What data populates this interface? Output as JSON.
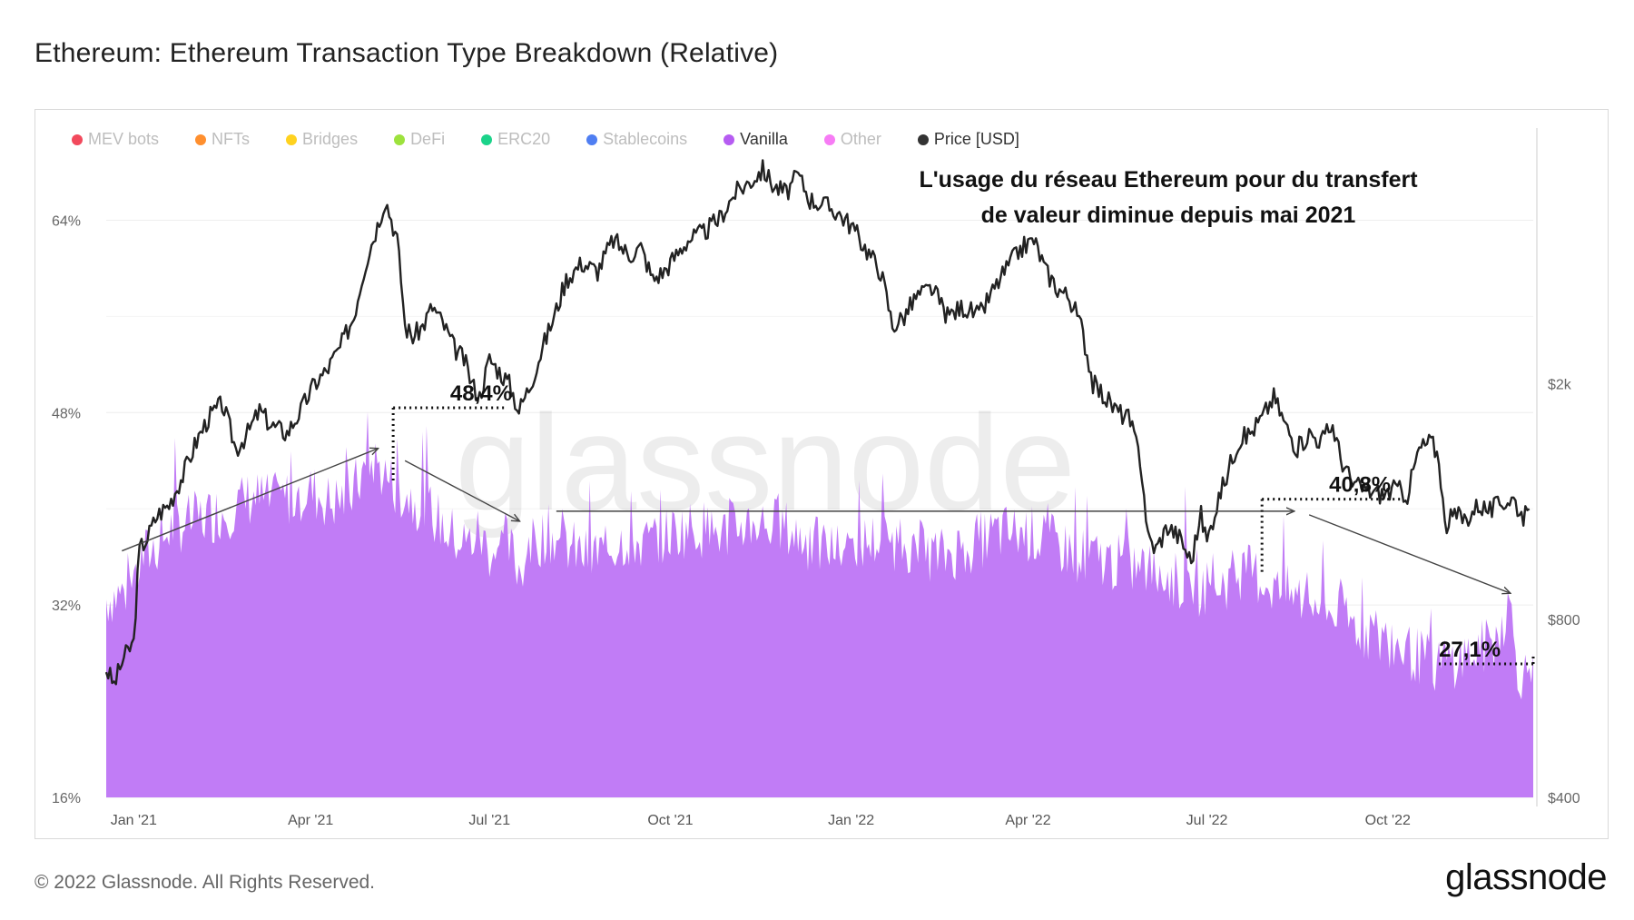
{
  "header": {
    "title": "Ethereum: Ethereum Transaction Type Breakdown (Relative)"
  },
  "legend": [
    {
      "label": "MEV bots",
      "color": "#f2495c",
      "active": false
    },
    {
      "label": "NFTs",
      "color": "#ff8f2e",
      "active": false
    },
    {
      "label": "Bridges",
      "color": "#ffd21f",
      "active": false
    },
    {
      "label": "DeFi",
      "color": "#9de23d",
      "active": false
    },
    {
      "label": "ERC20",
      "color": "#1bd38a",
      "active": false
    },
    {
      "label": "Stablecoins",
      "color": "#4f7ef2",
      "active": false
    },
    {
      "label": "Vanilla",
      "color": "#b65cf2",
      "active": true
    },
    {
      "label": "Other",
      "color": "#f77cf5",
      "active": false
    },
    {
      "label": "Price [USD]",
      "color": "#333333",
      "active": true
    }
  ],
  "annotation": {
    "line1": "L'usage du réseau Ethereum pour du transfert",
    "line2": "de valeur diminue depuis mai 2021"
  },
  "watermark": "glassnode",
  "footer": {
    "copyright": "© 2022 Glassnode. All Rights Reserved.",
    "logo": "glassnode"
  },
  "chart_data": {
    "type": "area",
    "title": "Ethereum: Ethereum Transaction Type Breakdown (Relative)",
    "x_ticks": [
      "Jan '21",
      "Apr '21",
      "Jul '21",
      "Oct '21",
      "Jan '22",
      "Apr '22",
      "Jul '22",
      "Oct '22"
    ],
    "x_tick_dates": [
      0,
      90,
      181,
      273,
      365,
      455,
      546,
      638
    ],
    "x_range_days": [
      -14,
      712
    ],
    "y_left": {
      "ticks": [
        "16%",
        "32%",
        "48%",
        "64%"
      ],
      "values": [
        16,
        32,
        48,
        64
      ],
      "range": [
        16,
        70
      ]
    },
    "y_right": {
      "ticks": [
        "$400",
        "$800",
        "$2k"
      ],
      "values": [
        400,
        800,
        2000
      ],
      "scale": "log",
      "range": [
        400,
        5000
      ]
    },
    "series": [
      {
        "name": "Vanilla",
        "unit": "%",
        "color": "#c17cf6",
        "points": [
          [
            -14,
            32.5
          ],
          [
            -5,
            33
          ],
          [
            0,
            34
          ],
          [
            5,
            36
          ],
          [
            12,
            37
          ],
          [
            20,
            38.5
          ],
          [
            30,
            39
          ],
          [
            40,
            39.5
          ],
          [
            50,
            40
          ],
          [
            60,
            41
          ],
          [
            70,
            40.5
          ],
          [
            80,
            41
          ],
          [
            90,
            41.5
          ],
          [
            100,
            40.5
          ],
          [
            110,
            41
          ],
          [
            115,
            42.5
          ],
          [
            122,
            44
          ],
          [
            132,
            42
          ],
          [
            140,
            41
          ],
          [
            150,
            40
          ],
          [
            160,
            38
          ],
          [
            170,
            37
          ],
          [
            175,
            38
          ],
          [
            181,
            36.5
          ],
          [
            190,
            37
          ],
          [
            196,
            35
          ],
          [
            203,
            37
          ],
          [
            210,
            38
          ],
          [
            220,
            37
          ],
          [
            230,
            36
          ],
          [
            240,
            36.5
          ],
          [
            250,
            37.5
          ],
          [
            260,
            37
          ],
          [
            273,
            38
          ],
          [
            285,
            38.5
          ],
          [
            300,
            38
          ],
          [
            315,
            39
          ],
          [
            330,
            38.5
          ],
          [
            345,
            37
          ],
          [
            360,
            36.5
          ],
          [
            365,
            37
          ],
          [
            380,
            37.5
          ],
          [
            395,
            37
          ],
          [
            410,
            36
          ],
          [
            425,
            37
          ],
          [
            440,
            38
          ],
          [
            455,
            38
          ],
          [
            470,
            37
          ],
          [
            485,
            36
          ],
          [
            500,
            35.5
          ],
          [
            515,
            35
          ],
          [
            530,
            34
          ],
          [
            540,
            33.5
          ],
          [
            546,
            33.5
          ],
          [
            556,
            34
          ],
          [
            566,
            35
          ],
          [
            575,
            34
          ],
          [
            585,
            33
          ],
          [
            595,
            32.5
          ],
          [
            610,
            31.5
          ],
          [
            625,
            30
          ],
          [
            638,
            29
          ],
          [
            650,
            28
          ],
          [
            662,
            27
          ],
          [
            672,
            27.5
          ],
          [
            682,
            28
          ],
          [
            692,
            29
          ],
          [
            700,
            32
          ],
          [
            704,
            27
          ],
          [
            708,
            26
          ],
          [
            712,
            26
          ]
        ]
      },
      {
        "name": "Price [USD]",
        "unit": "USD",
        "color": "#222222",
        "points": [
          [
            -14,
            660
          ],
          [
            -10,
            620
          ],
          [
            -5,
            690
          ],
          [
            0,
            730
          ],
          [
            3,
            1050
          ],
          [
            7,
            1100
          ],
          [
            12,
            1200
          ],
          [
            18,
            1250
          ],
          [
            25,
            1400
          ],
          [
            32,
            1600
          ],
          [
            38,
            1750
          ],
          [
            45,
            1850
          ],
          [
            52,
            1550
          ],
          [
            58,
            1650
          ],
          [
            64,
            1800
          ],
          [
            70,
            1700
          ],
          [
            78,
            1650
          ],
          [
            85,
            1800
          ],
          [
            92,
            2000
          ],
          [
            98,
            2100
          ],
          [
            105,
            2300
          ],
          [
            112,
            2600
          ],
          [
            118,
            3200
          ],
          [
            124,
            3700
          ],
          [
            128,
            4100
          ],
          [
            134,
            3500
          ],
          [
            138,
            2500
          ],
          [
            142,
            2400
          ],
          [
            147,
            2500
          ],
          [
            152,
            2700
          ],
          [
            158,
            2500
          ],
          [
            163,
            2300
          ],
          [
            168,
            2200
          ],
          [
            172,
            2000
          ],
          [
            176,
            1900
          ],
          [
            181,
            2200
          ],
          [
            186,
            2100
          ],
          [
            191,
            2000
          ],
          [
            196,
            1800
          ],
          [
            202,
            2000
          ],
          [
            208,
            2300
          ],
          [
            214,
            2600
          ],
          [
            220,
            3000
          ],
          [
            228,
            3200
          ],
          [
            236,
            3100
          ],
          [
            244,
            3500
          ],
          [
            252,
            3300
          ],
          [
            258,
            3400
          ],
          [
            264,
            3000
          ],
          [
            270,
            3100
          ],
          [
            276,
            3300
          ],
          [
            282,
            3500
          ],
          [
            290,
            3600
          ],
          [
            298,
            3800
          ],
          [
            306,
            4200
          ],
          [
            314,
            4400
          ],
          [
            320,
            4600
          ],
          [
            326,
            4300
          ],
          [
            332,
            4200
          ],
          [
            338,
            4500
          ],
          [
            344,
            4100
          ],
          [
            352,
            4000
          ],
          [
            358,
            3900
          ],
          [
            365,
            3700
          ],
          [
            372,
            3400
          ],
          [
            380,
            3100
          ],
          [
            386,
            2500
          ],
          [
            392,
            2600
          ],
          [
            398,
            2800
          ],
          [
            406,
            2900
          ],
          [
            414,
            2600
          ],
          [
            422,
            2700
          ],
          [
            430,
            2600
          ],
          [
            438,
            2900
          ],
          [
            446,
            3200
          ],
          [
            452,
            3400
          ],
          [
            458,
            3500
          ],
          [
            464,
            3100
          ],
          [
            470,
            2900
          ],
          [
            476,
            2800
          ],
          [
            482,
            2500
          ],
          [
            488,
            2000
          ],
          [
            494,
            1900
          ],
          [
            500,
            1800
          ],
          [
            506,
            1750
          ],
          [
            512,
            1500
          ],
          [
            516,
            1100
          ],
          [
            520,
            1050
          ],
          [
            526,
            1150
          ],
          [
            532,
            1100
          ],
          [
            538,
            1000
          ],
          [
            543,
            1200
          ],
          [
            546,
            1080
          ],
          [
            551,
            1250
          ],
          [
            556,
            1400
          ],
          [
            562,
            1600
          ],
          [
            568,
            1650
          ],
          [
            574,
            1750
          ],
          [
            580,
            1900
          ],
          [
            586,
            1700
          ],
          [
            592,
            1550
          ],
          [
            598,
            1650
          ],
          [
            604,
            1600
          ],
          [
            610,
            1700
          ],
          [
            614,
            1500
          ],
          [
            620,
            1350
          ],
          [
            628,
            1320
          ],
          [
            636,
            1300
          ],
          [
            642,
            1330
          ],
          [
            648,
            1300
          ],
          [
            654,
            1550
          ],
          [
            660,
            1600
          ],
          [
            664,
            1500
          ],
          [
            667,
            1150
          ],
          [
            672,
            1200
          ],
          [
            678,
            1180
          ],
          [
            684,
            1250
          ],
          [
            690,
            1220
          ],
          [
            696,
            1260
          ],
          [
            702,
            1280
          ],
          [
            706,
            1200
          ],
          [
            710,
            1190
          ]
        ]
      }
    ],
    "markers": [
      {
        "label": "48,4%",
        "x_from": 132,
        "x_to": 190,
        "value": 48.4
      },
      {
        "label": "40,8%",
        "x_from": 574,
        "x_to": 646,
        "value": 40.8
      },
      {
        "label": "27,1%",
        "x_from": 664,
        "x_to": 712,
        "value": 27.1
      }
    ],
    "trend_arrows": [
      {
        "from": [
          -6,
          36.5
        ],
        "to": [
          124,
          45
        ]
      },
      {
        "from": [
          138,
          44
        ],
        "to": [
          196,
          39
        ]
      },
      {
        "from": [
          215,
          39.8
        ],
        "to": [
          590,
          39.8
        ]
      },
      {
        "from": [
          598,
          39.5
        ],
        "to": [
          700,
          33
        ]
      }
    ]
  }
}
